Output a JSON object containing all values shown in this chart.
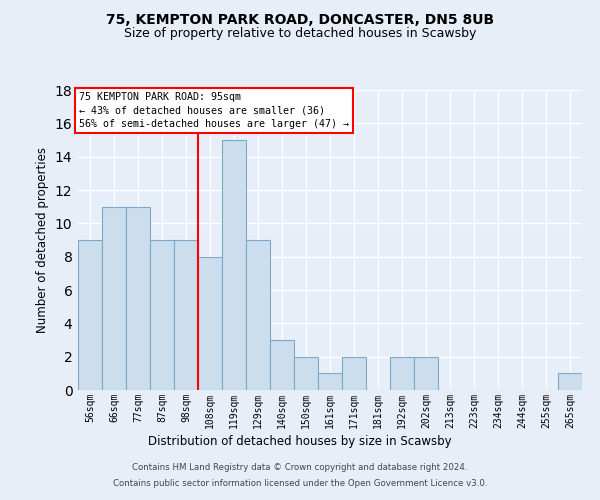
{
  "title1": "75, KEMPTON PARK ROAD, DONCASTER, DN5 8UB",
  "title2": "Size of property relative to detached houses in Scawsby",
  "xlabel": "Distribution of detached houses by size in Scawsby",
  "ylabel": "Number of detached properties",
  "categories": [
    "56sqm",
    "66sqm",
    "77sqm",
    "87sqm",
    "98sqm",
    "108sqm",
    "119sqm",
    "129sqm",
    "140sqm",
    "150sqm",
    "161sqm",
    "171sqm",
    "181sqm",
    "192sqm",
    "202sqm",
    "213sqm",
    "223sqm",
    "234sqm",
    "244sqm",
    "255sqm",
    "265sqm"
  ],
  "values": [
    9,
    11,
    11,
    9,
    9,
    8,
    15,
    9,
    3,
    2,
    1,
    2,
    0,
    2,
    2,
    0,
    0,
    0,
    0,
    0,
    1
  ],
  "bar_color": "#ccdded",
  "bar_edgecolor": "#7aaac8",
  "background_color": "#e8eef8",
  "red_line_x": 4.5,
  "ylim": [
    0,
    18
  ],
  "yticks": [
    0,
    2,
    4,
    6,
    8,
    10,
    12,
    14,
    16,
    18
  ],
  "annotation_line1": "75 KEMPTON PARK ROAD: 95sqm",
  "annotation_line2": "← 43% of detached houses are smaller (36)",
  "annotation_line3": "56% of semi-detached houses are larger (47) →",
  "footer1": "Contains HM Land Registry data © Crown copyright and database right 2024.",
  "footer2": "Contains public sector information licensed under the Open Government Licence v3.0."
}
